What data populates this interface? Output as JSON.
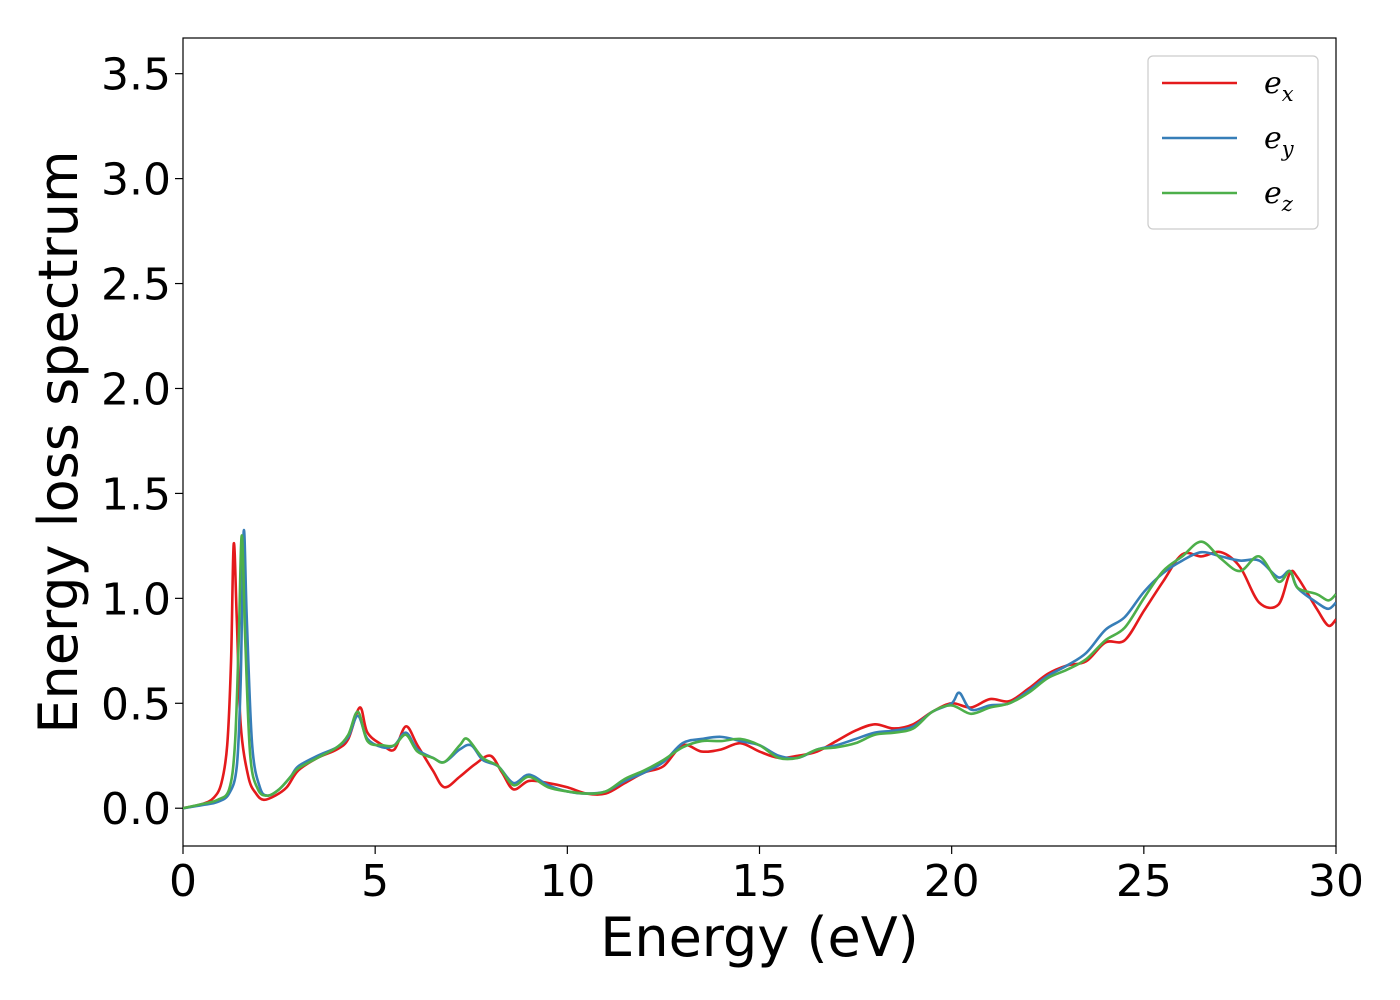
{
  "chart_data": {
    "type": "line",
    "title": "",
    "xlabel": "Energy (eV)",
    "ylabel": "Energy loss spectrum",
    "xlim": [
      0,
      30
    ],
    "ylim": [
      -0.18,
      3.67
    ],
    "xticks": [
      0,
      5,
      10,
      15,
      20,
      25,
      30
    ],
    "xtick_labels": [
      "0",
      "5",
      "10",
      "15",
      "20",
      "25",
      "30"
    ],
    "yticks": [
      0.0,
      0.5,
      1.0,
      1.5,
      2.0,
      2.5,
      3.0,
      3.5
    ],
    "ytick_labels": [
      "0.0",
      "0.5",
      "1.0",
      "1.5",
      "2.0",
      "2.5",
      "3.0",
      "3.5"
    ],
    "grid": false,
    "legend_position": "top-right",
    "series": [
      {
        "name": "e",
        "subscript": "x",
        "color": "#e41a1c",
        "points": [
          [
            0,
            0
          ],
          [
            0.5,
            0.02
          ],
          [
            0.8,
            0.05
          ],
          [
            1.0,
            0.12
          ],
          [
            1.15,
            0.3
          ],
          [
            1.25,
            0.7
          ],
          [
            1.32,
            1.26
          ],
          [
            1.4,
            0.9
          ],
          [
            1.5,
            0.4
          ],
          [
            1.7,
            0.15
          ],
          [
            1.9,
            0.07
          ],
          [
            2.1,
            0.04
          ],
          [
            2.4,
            0.06
          ],
          [
            2.7,
            0.1
          ],
          [
            3.0,
            0.18
          ],
          [
            3.5,
            0.24
          ],
          [
            4.0,
            0.28
          ],
          [
            4.3,
            0.33
          ],
          [
            4.6,
            0.48
          ],
          [
            4.8,
            0.36
          ],
          [
            5.2,
            0.3
          ],
          [
            5.5,
            0.28
          ],
          [
            5.8,
            0.39
          ],
          [
            6.1,
            0.3
          ],
          [
            6.5,
            0.18
          ],
          [
            6.8,
            0.1
          ],
          [
            7.2,
            0.15
          ],
          [
            7.6,
            0.21
          ],
          [
            8.0,
            0.25
          ],
          [
            8.3,
            0.17
          ],
          [
            8.6,
            0.09
          ],
          [
            9.0,
            0.13
          ],
          [
            9.5,
            0.12
          ],
          [
            10.0,
            0.1
          ],
          [
            10.5,
            0.07
          ],
          [
            11.0,
            0.07
          ],
          [
            11.5,
            0.12
          ],
          [
            12.0,
            0.17
          ],
          [
            12.5,
            0.2
          ],
          [
            13.0,
            0.3
          ],
          [
            13.5,
            0.27
          ],
          [
            14.0,
            0.28
          ],
          [
            14.5,
            0.31
          ],
          [
            15.0,
            0.27
          ],
          [
            15.5,
            0.24
          ],
          [
            16.0,
            0.25
          ],
          [
            16.5,
            0.27
          ],
          [
            17.0,
            0.32
          ],
          [
            17.5,
            0.37
          ],
          [
            18.0,
            0.4
          ],
          [
            18.5,
            0.38
          ],
          [
            19.0,
            0.4
          ],
          [
            19.5,
            0.46
          ],
          [
            20.0,
            0.5
          ],
          [
            20.5,
            0.48
          ],
          [
            21.0,
            0.52
          ],
          [
            21.5,
            0.51
          ],
          [
            22.0,
            0.57
          ],
          [
            22.5,
            0.64
          ],
          [
            23.0,
            0.68
          ],
          [
            23.5,
            0.7
          ],
          [
            24.0,
            0.79
          ],
          [
            24.5,
            0.8
          ],
          [
            25.0,
            0.94
          ],
          [
            25.5,
            1.08
          ],
          [
            26.0,
            1.21
          ],
          [
            26.5,
            1.2
          ],
          [
            27.0,
            1.22
          ],
          [
            27.5,
            1.15
          ],
          [
            28.0,
            0.98
          ],
          [
            28.5,
            0.97
          ],
          [
            28.8,
            1.12
          ],
          [
            29.0,
            1.1
          ],
          [
            29.5,
            0.95
          ],
          [
            29.8,
            0.87
          ],
          [
            30.0,
            0.9
          ]
        ]
      },
      {
        "name": "e",
        "subscript": "y",
        "color": "#377eb8",
        "points": [
          [
            0,
            0
          ],
          [
            0.5,
            0.015
          ],
          [
            0.9,
            0.03
          ],
          [
            1.2,
            0.07
          ],
          [
            1.4,
            0.2
          ],
          [
            1.5,
            0.6
          ],
          [
            1.58,
            1.32
          ],
          [
            1.66,
            0.9
          ],
          [
            1.8,
            0.3
          ],
          [
            2.0,
            0.1
          ],
          [
            2.2,
            0.06
          ],
          [
            2.5,
            0.09
          ],
          [
            2.8,
            0.15
          ],
          [
            3.0,
            0.2
          ],
          [
            3.5,
            0.25
          ],
          [
            4.0,
            0.29
          ],
          [
            4.3,
            0.34
          ],
          [
            4.55,
            0.44
          ],
          [
            4.8,
            0.33
          ],
          [
            5.2,
            0.29
          ],
          [
            5.5,
            0.3
          ],
          [
            5.8,
            0.36
          ],
          [
            6.1,
            0.28
          ],
          [
            6.5,
            0.24
          ],
          [
            6.8,
            0.22
          ],
          [
            7.2,
            0.28
          ],
          [
            7.5,
            0.3
          ],
          [
            7.8,
            0.23
          ],
          [
            8.2,
            0.2
          ],
          [
            8.6,
            0.12
          ],
          [
            9.0,
            0.16
          ],
          [
            9.5,
            0.11
          ],
          [
            10.0,
            0.08
          ],
          [
            10.5,
            0.07
          ],
          [
            11.0,
            0.08
          ],
          [
            11.5,
            0.13
          ],
          [
            12.0,
            0.17
          ],
          [
            12.5,
            0.22
          ],
          [
            13.0,
            0.31
          ],
          [
            13.5,
            0.33
          ],
          [
            14.0,
            0.34
          ],
          [
            14.5,
            0.32
          ],
          [
            15.0,
            0.3
          ],
          [
            15.5,
            0.25
          ],
          [
            16.0,
            0.24
          ],
          [
            16.5,
            0.28
          ],
          [
            17.0,
            0.3
          ],
          [
            17.5,
            0.33
          ],
          [
            18.0,
            0.36
          ],
          [
            18.5,
            0.37
          ],
          [
            19.0,
            0.39
          ],
          [
            19.5,
            0.46
          ],
          [
            20.0,
            0.5
          ],
          [
            20.2,
            0.55
          ],
          [
            20.5,
            0.47
          ],
          [
            21.0,
            0.49
          ],
          [
            21.5,
            0.5
          ],
          [
            22.0,
            0.56
          ],
          [
            22.5,
            0.63
          ],
          [
            23.0,
            0.68
          ],
          [
            23.5,
            0.74
          ],
          [
            24.0,
            0.85
          ],
          [
            24.5,
            0.91
          ],
          [
            25.0,
            1.03
          ],
          [
            25.5,
            1.12
          ],
          [
            26.0,
            1.18
          ],
          [
            26.5,
            1.22
          ],
          [
            27.0,
            1.2
          ],
          [
            27.5,
            1.18
          ],
          [
            28.0,
            1.18
          ],
          [
            28.5,
            1.1
          ],
          [
            28.8,
            1.13
          ],
          [
            29.0,
            1.05
          ],
          [
            29.5,
            0.98
          ],
          [
            29.8,
            0.95
          ],
          [
            30.0,
            0.98
          ]
        ]
      },
      {
        "name": "e",
        "subscript": "z",
        "color": "#4daf4a",
        "points": [
          [
            0,
            0
          ],
          [
            0.5,
            0.02
          ],
          [
            0.9,
            0.04
          ],
          [
            1.2,
            0.09
          ],
          [
            1.35,
            0.3
          ],
          [
            1.45,
            0.8
          ],
          [
            1.53,
            1.3
          ],
          [
            1.62,
            0.8
          ],
          [
            1.75,
            0.25
          ],
          [
            1.95,
            0.09
          ],
          [
            2.2,
            0.06
          ],
          [
            2.5,
            0.09
          ],
          [
            2.8,
            0.15
          ],
          [
            3.0,
            0.19
          ],
          [
            3.5,
            0.24
          ],
          [
            4.0,
            0.29
          ],
          [
            4.3,
            0.35
          ],
          [
            4.55,
            0.46
          ],
          [
            4.8,
            0.32
          ],
          [
            5.2,
            0.3
          ],
          [
            5.5,
            0.3
          ],
          [
            5.8,
            0.35
          ],
          [
            6.1,
            0.27
          ],
          [
            6.5,
            0.24
          ],
          [
            6.8,
            0.22
          ],
          [
            7.2,
            0.3
          ],
          [
            7.4,
            0.33
          ],
          [
            7.8,
            0.24
          ],
          [
            8.2,
            0.2
          ],
          [
            8.6,
            0.11
          ],
          [
            9.0,
            0.15
          ],
          [
            9.5,
            0.1
          ],
          [
            10.0,
            0.08
          ],
          [
            10.5,
            0.07
          ],
          [
            11.0,
            0.08
          ],
          [
            11.5,
            0.14
          ],
          [
            12.0,
            0.18
          ],
          [
            12.5,
            0.23
          ],
          [
            13.0,
            0.29
          ],
          [
            13.5,
            0.32
          ],
          [
            14.0,
            0.32
          ],
          [
            14.5,
            0.33
          ],
          [
            15.0,
            0.3
          ],
          [
            15.5,
            0.24
          ],
          [
            16.0,
            0.24
          ],
          [
            16.5,
            0.28
          ],
          [
            17.0,
            0.29
          ],
          [
            17.5,
            0.31
          ],
          [
            18.0,
            0.35
          ],
          [
            18.5,
            0.36
          ],
          [
            19.0,
            0.38
          ],
          [
            19.5,
            0.46
          ],
          [
            20.0,
            0.49
          ],
          [
            20.5,
            0.45
          ],
          [
            21.0,
            0.48
          ],
          [
            21.5,
            0.5
          ],
          [
            22.0,
            0.55
          ],
          [
            22.5,
            0.62
          ],
          [
            23.0,
            0.66
          ],
          [
            23.5,
            0.71
          ],
          [
            24.0,
            0.8
          ],
          [
            24.5,
            0.86
          ],
          [
            25.0,
            1.0
          ],
          [
            25.5,
            1.13
          ],
          [
            26.0,
            1.2
          ],
          [
            26.5,
            1.27
          ],
          [
            27.0,
            1.19
          ],
          [
            27.5,
            1.13
          ],
          [
            28.0,
            1.2
          ],
          [
            28.5,
            1.08
          ],
          [
            28.8,
            1.13
          ],
          [
            29.0,
            1.05
          ],
          [
            29.5,
            1.02
          ],
          [
            29.8,
            0.99
          ],
          [
            30.0,
            1.02
          ]
        ]
      }
    ]
  }
}
